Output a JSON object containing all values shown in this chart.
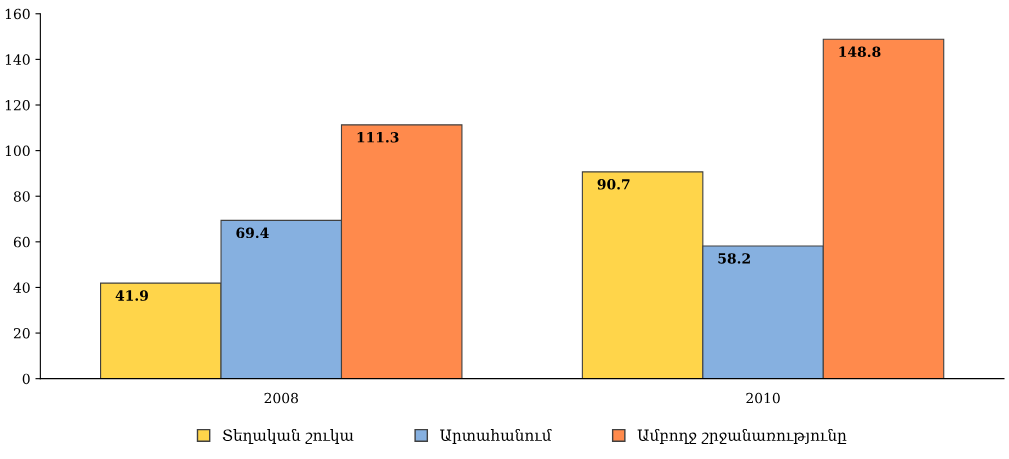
{
  "chart_data": {
    "type": "bar",
    "categories": [
      "2008",
      "2010"
    ],
    "series": [
      {
        "name": "Տեղական շուկա",
        "color": "#ffd54a",
        "values": [
          41.9,
          90.7
        ]
      },
      {
        "name": "Արտահանում",
        "color": "#86b0e0",
        "values": [
          69.4,
          58.2
        ]
      },
      {
        "name": "Ամբողջ շրջանառությունը",
        "color": "#ff8a4c",
        "values": [
          111.3,
          148.8
        ]
      }
    ],
    "ylim": [
      0,
      160
    ],
    "yticks": [
      0,
      20,
      40,
      60,
      80,
      100,
      120,
      140,
      160
    ],
    "grid": false,
    "legend": "bottom",
    "data_labels": true
  }
}
